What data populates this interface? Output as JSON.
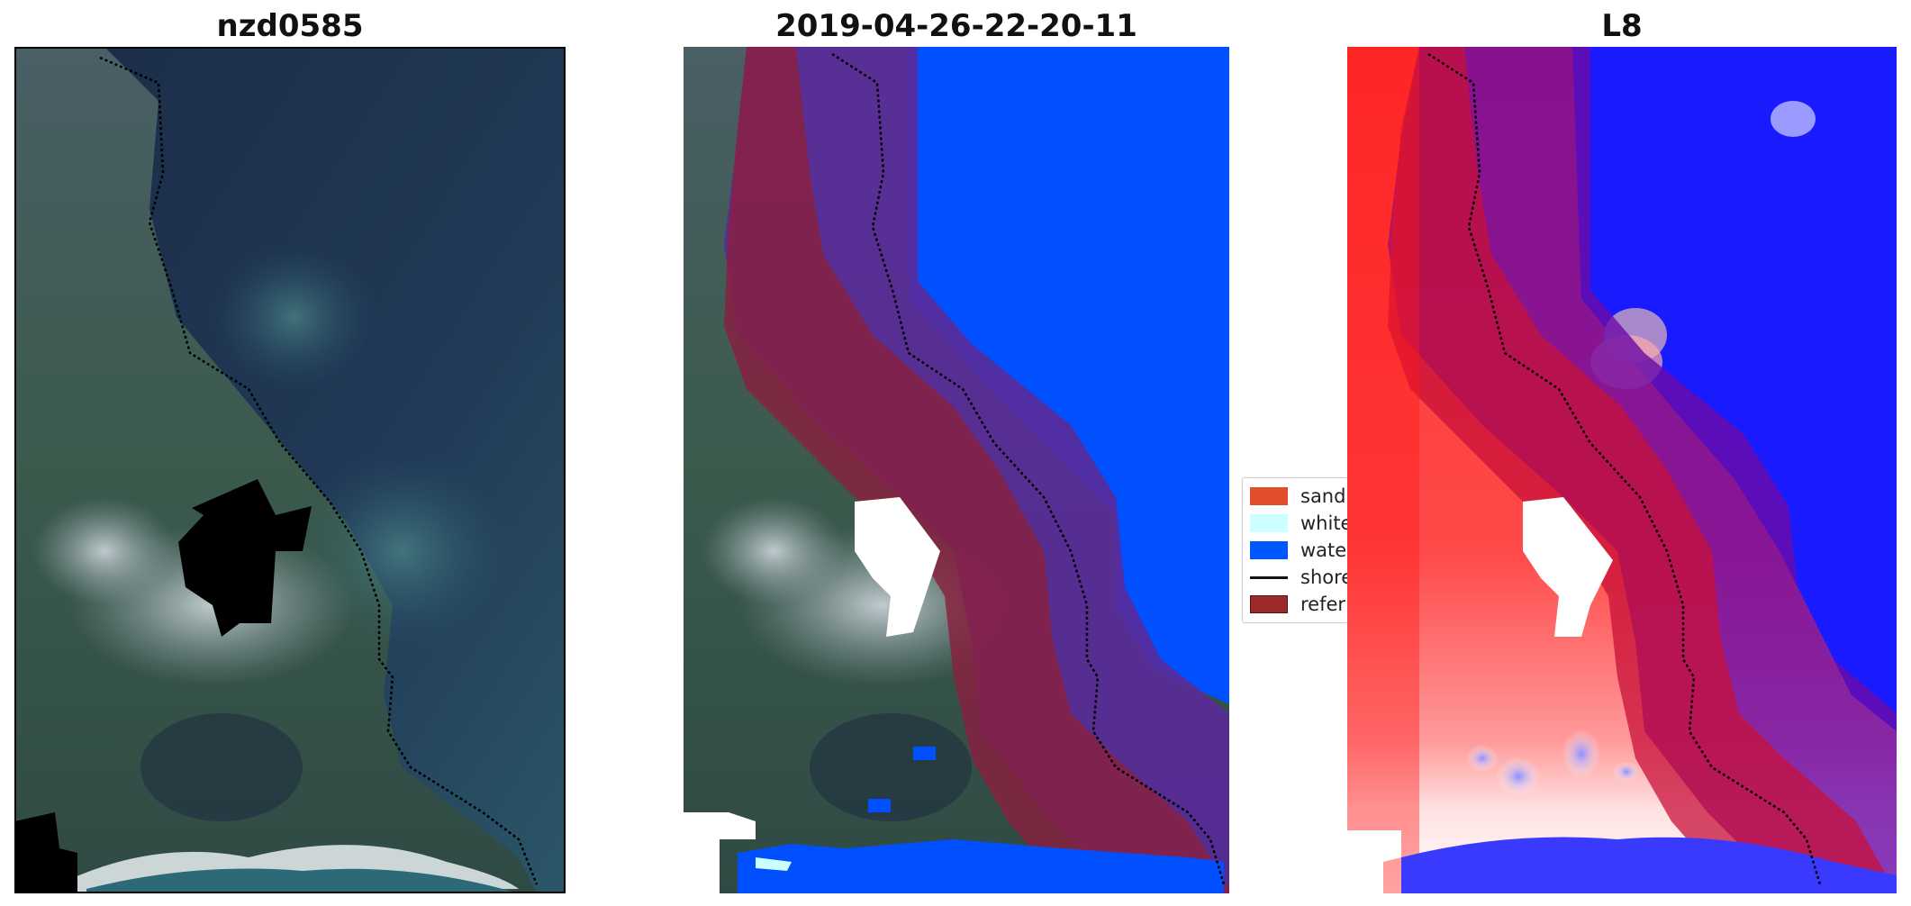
{
  "panels": [
    {
      "title": "nzd0585"
    },
    {
      "title": "2019-04-26-22-20-11"
    },
    {
      "title": "L8"
    }
  ],
  "legend": {
    "items": [
      {
        "label": "sand",
        "color": "#e24e2b"
      },
      {
        "label": "white",
        "color": "#ccffff"
      },
      {
        "label": "wate",
        "color": "#0056ff"
      },
      {
        "label": "shore",
        "color": "#000000"
      },
      {
        "label": "refer",
        "color": "#9b2b2b"
      }
    ]
  },
  "colors": {
    "water_class": "#0050ff",
    "buffer_purple": "#5a2a9a",
    "reference_red": "#8a2040",
    "ocean_dark": "#1e3352",
    "land_green": "#3d5d52",
    "l8_red": "#ff2a2a",
    "l8_blue": "#1a1aff"
  }
}
